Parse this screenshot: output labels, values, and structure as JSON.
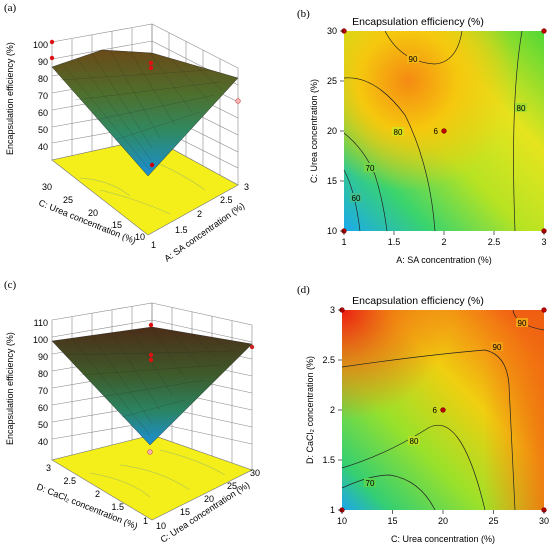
{
  "figure": {
    "panels": [
      {
        "id": "a",
        "label": "(a)"
      },
      {
        "id": "b",
        "label": "(b)"
      },
      {
        "id": "c",
        "label": "(c)"
      },
      {
        "id": "d",
        "label": "(d)"
      }
    ]
  },
  "chart_data": [
    {
      "panel": "(a)",
      "type": "surface3d",
      "title": "",
      "zlabel": "Encapsulation efficiency (%)",
      "xlabel": "A: SA concentration (%)",
      "ylabel": "C: Urea concentration (%)",
      "z_ticks": [
        "40",
        "50",
        "60",
        "70",
        "80",
        "90",
        "100"
      ],
      "x_ticks": [
        "1",
        "1.5",
        "2",
        "2.5",
        "3"
      ],
      "y_ticks": [
        "10",
        "15",
        "20",
        "25",
        "30"
      ],
      "zlim": [
        35,
        100
      ],
      "surface_corners": {
        "A1_C10": 38,
        "A1_C30": 87,
        "A3_C10": 80,
        "A3_C30": 83,
        "center": 93
      },
      "design_points": [
        {
          "A": 2,
          "C": 20,
          "z": 93
        },
        {
          "A": 1,
          "C": 30,
          "z": 98
        },
        {
          "A": 3,
          "C": 30,
          "z": 78
        },
        {
          "A": 1,
          "C": 10,
          "z": 30
        }
      ]
    },
    {
      "panel": "(b)",
      "type": "contour",
      "title": "Encapsulation efficiency (%)",
      "xlabel": "A: SA concentration (%)",
      "ylabel": "C: Urea concentration (%)",
      "x_ticks": [
        "1",
        "1.5",
        "2",
        "2.5",
        "3"
      ],
      "y_ticks": [
        "10",
        "15",
        "20",
        "25",
        "30"
      ],
      "xlim": [
        1,
        3
      ],
      "ylim": [
        10,
        30
      ],
      "contour_labels": [
        "90",
        "80",
        "80",
        "70",
        "60"
      ],
      "center_label": "6",
      "design_points": [
        {
          "x": 1,
          "y": 30
        },
        {
          "x": 3,
          "y": 30
        },
        {
          "x": 2,
          "y": 20
        },
        {
          "x": 1,
          "y": 10
        },
        {
          "x": 3,
          "y": 10
        }
      ]
    },
    {
      "panel": "(c)",
      "type": "surface3d",
      "title": "",
      "zlabel": "Encapsulation efficiency (%)",
      "xlabel": "C: Urea concentration (%)",
      "ylabel": "D: CaCl₂ concentration (%)",
      "z_ticks": [
        "40",
        "50",
        "60",
        "70",
        "80",
        "90",
        "100",
        "110"
      ],
      "x_ticks": [
        "10",
        "15",
        "20",
        "25",
        "30"
      ],
      "y_ticks": [
        "1",
        "1.5",
        "2",
        "2.5",
        "3"
      ],
      "zlim": [
        35,
        110
      ],
      "surface_corners": {
        "C10_D1": 42,
        "C10_D3": 100,
        "C30_D1": 88,
        "C30_D3": 92,
        "center": 95
      },
      "design_points": [
        {
          "C": 20,
          "D": 2,
          "z": 95
        },
        {
          "C": 20,
          "D": 2,
          "z": 107
        },
        {
          "C": 30,
          "D": 3,
          "z": 96
        },
        {
          "C": 10,
          "D": 1,
          "z": 36
        }
      ]
    },
    {
      "panel": "(d)",
      "type": "contour",
      "title": "Encapsulation efficiency (%)",
      "xlabel": "C: Urea concentration (%)",
      "ylabel": "D: CaCl₂ concentration (%)",
      "x_ticks": [
        "10",
        "15",
        "20",
        "25",
        "30"
      ],
      "y_ticks": [
        "1",
        "1.5",
        "2",
        "2.5",
        "3"
      ],
      "xlim": [
        10,
        30
      ],
      "ylim": [
        1,
        3
      ],
      "contour_labels": [
        "90",
        "90",
        "80",
        "70"
      ],
      "center_label": "6",
      "design_points": [
        {
          "x": 10,
          "y": 3
        },
        {
          "x": 30,
          "y": 3
        },
        {
          "x": 20,
          "y": 2
        },
        {
          "x": 10,
          "y": 1
        },
        {
          "x": 30,
          "y": 1
        }
      ]
    }
  ]
}
